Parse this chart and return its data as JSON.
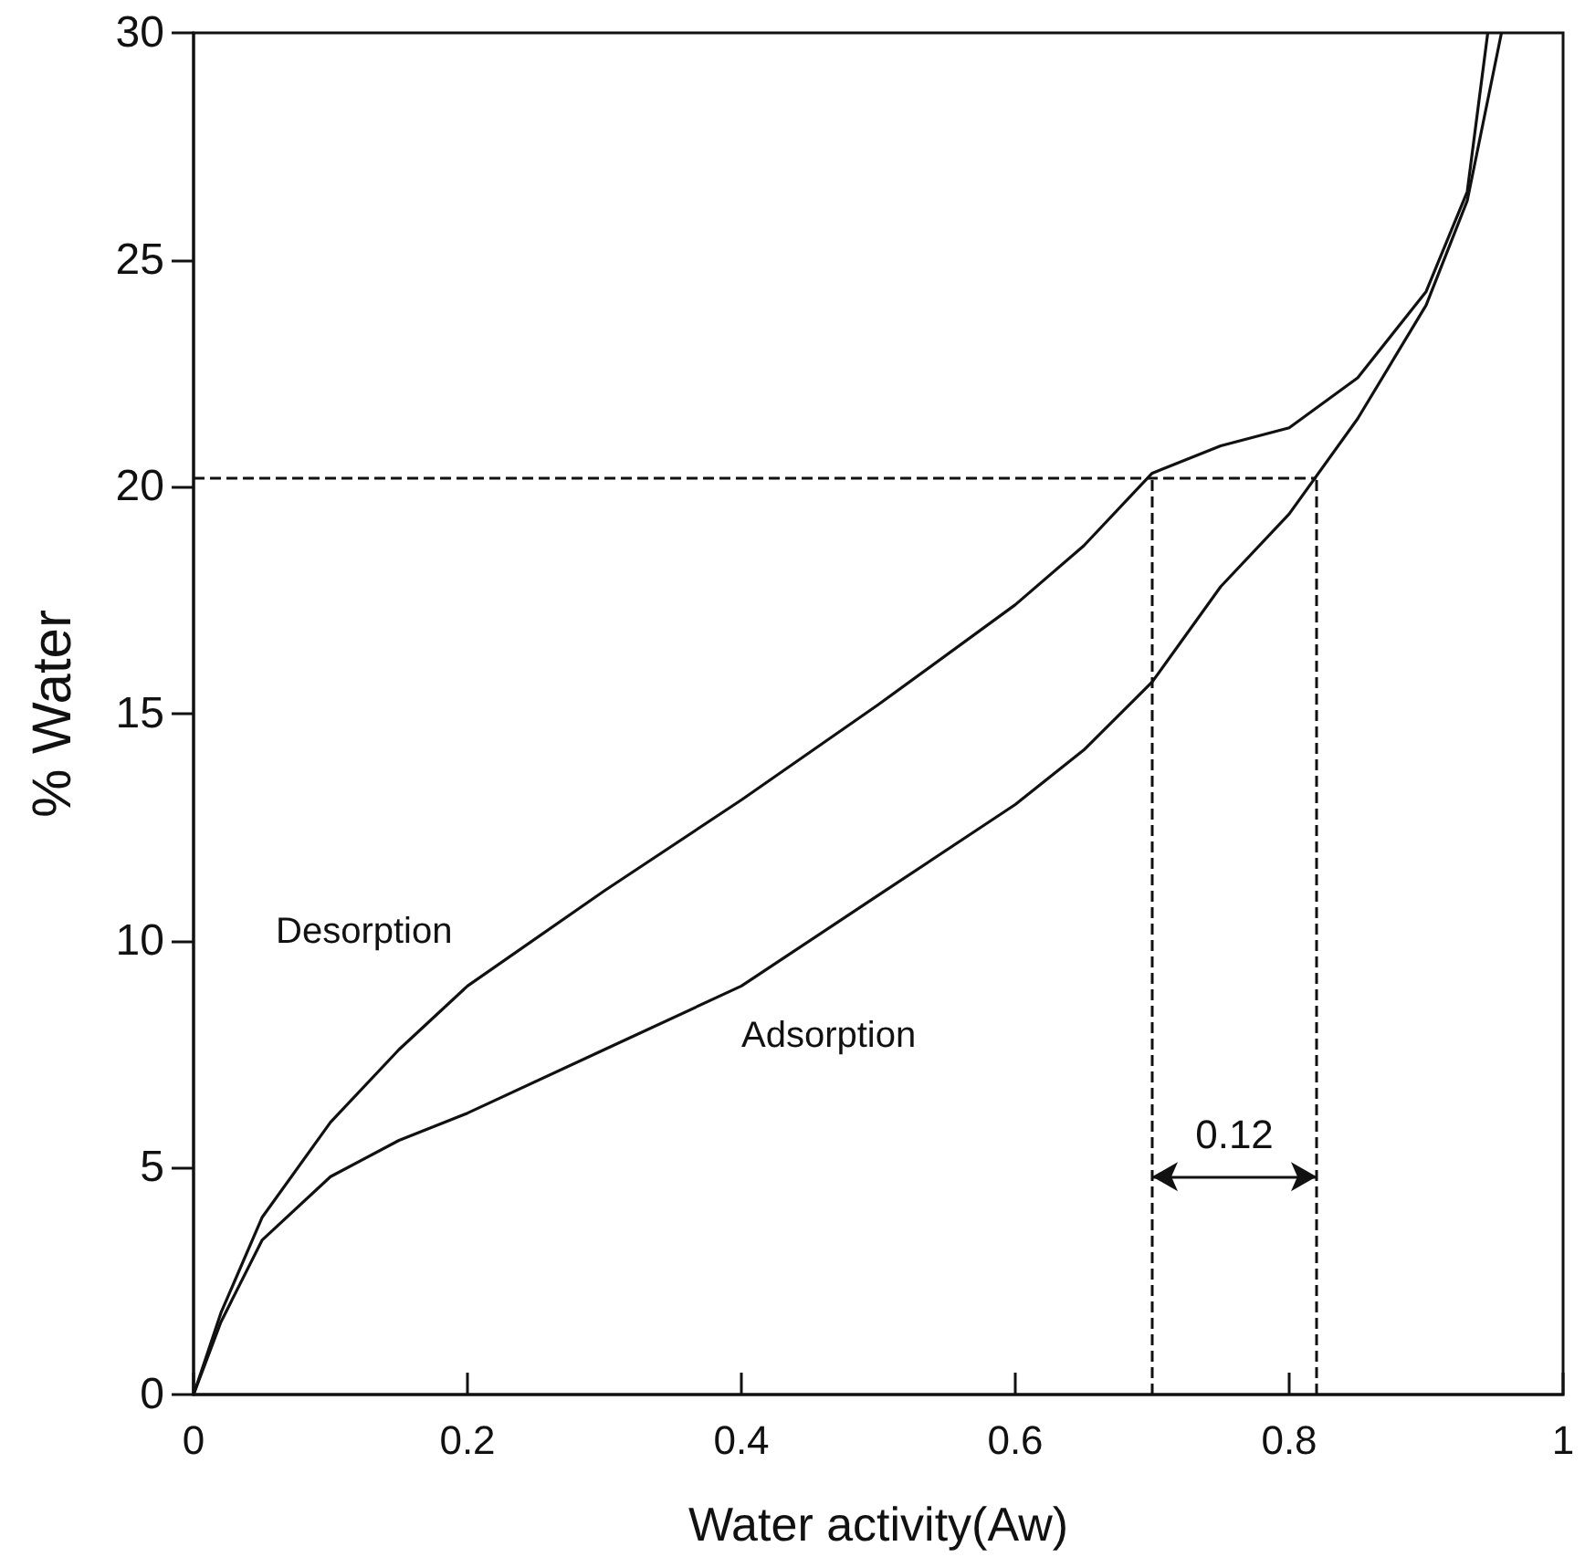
{
  "chart_data": {
    "type": "line",
    "xlabel": "Water activity(Aw)",
    "ylabel": "% Water",
    "xlim": [
      0,
      1
    ],
    "xticks": [
      0,
      0.2,
      0.4,
      0.6,
      0.8,
      1
    ],
    "ylim": [
      0,
      30
    ],
    "yticks": [
      0,
      5,
      10,
      15,
      20,
      25,
      30
    ],
    "grid": false,
    "legend": false,
    "marker": "none",
    "line_style": "solid",
    "series": [
      {
        "name": "Desorption",
        "color": "#111111",
        "x": [
          0,
          0.02,
          0.05,
          0.1,
          0.15,
          0.2,
          0.3,
          0.4,
          0.5,
          0.6,
          0.65,
          0.7,
          0.75,
          0.8,
          0.85,
          0.9,
          0.93,
          0.945
        ],
        "values": [
          0,
          1.8,
          3.9,
          6.0,
          7.6,
          9.0,
          11.1,
          13.1,
          15.2,
          17.4,
          18.7,
          20.3,
          20.9,
          21.3,
          22.4,
          24.3,
          26.5,
          30
        ]
      },
      {
        "name": "Adsorption",
        "color": "#111111",
        "x": [
          0,
          0.02,
          0.05,
          0.1,
          0.15,
          0.2,
          0.3,
          0.4,
          0.5,
          0.6,
          0.65,
          0.7,
          0.75,
          0.8,
          0.85,
          0.9,
          0.93,
          0.955
        ],
        "values": [
          0,
          1.6,
          3.4,
          4.8,
          5.6,
          6.2,
          7.6,
          9.0,
          11.0,
          13.0,
          14.2,
          15.7,
          17.8,
          19.4,
          21.5,
          24.0,
          26.3,
          30
        ]
      }
    ],
    "ref_lines": [
      {
        "axis": "x",
        "value": 0.7,
        "line_style": "dashed"
      },
      {
        "axis": "x",
        "value": 0.82,
        "line_style": "dashed"
      },
      {
        "axis": "y",
        "value": 20.2,
        "line_style": "dashed"
      }
    ],
    "annotations": [
      "0.12"
    ]
  }
}
